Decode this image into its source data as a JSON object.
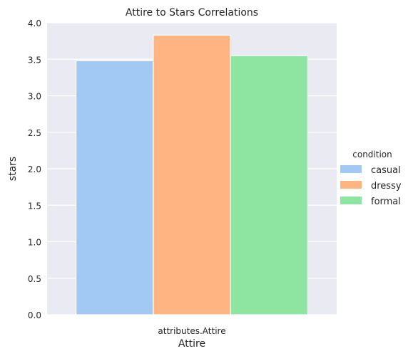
{
  "chart_data": {
    "type": "bar",
    "title": "Attire to Stars Correlations",
    "xlabel": "Attire",
    "ylabel": "stars",
    "categories": [
      "attributes.Attire"
    ],
    "ylim": [
      0,
      4.0
    ],
    "yticks": [
      "0.0",
      "0.5",
      "1.0",
      "1.5",
      "2.0",
      "2.5",
      "3.0",
      "3.5",
      "4.0"
    ],
    "grid": true,
    "legend": {
      "title": "condition",
      "placement": "right"
    },
    "series": [
      {
        "name": "casual",
        "values": [
          3.48
        ],
        "color": "#a1c9f4"
      },
      {
        "name": "dressy",
        "values": [
          3.83
        ],
        "color": "#ffb482"
      },
      {
        "name": "formal",
        "values": [
          3.55
        ],
        "color": "#8de5a1"
      }
    ]
  },
  "style": {
    "plot_background": "#eaeaf2",
    "grid_color": "#ffffff"
  }
}
